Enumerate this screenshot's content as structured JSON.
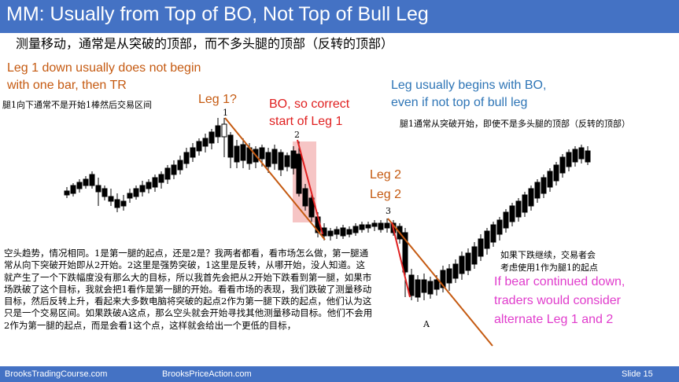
{
  "header": {
    "title": "MM: Usually from Top of BO, Not Top of Bull Leg",
    "subtitle": "测量移动，通常是从突破的顶部，而不多头腿的顶部（反转的顶部）"
  },
  "annotations": {
    "leg1_down_line1": "Leg 1 down usually does not begin",
    "leg1_down_line2": "with one bar, then TR",
    "leg1_down_cn": "腿1向下通常不是开始1棒然后交易区间",
    "leg1_q": "Leg 1?",
    "bo_line1": "BO, so correct",
    "bo_line2": "start of Leg 1",
    "leg_begins_line1": "Leg usually begins with BO,",
    "leg_begins_line2": "even if not top of bull leg",
    "leg_begins_cn": "腿1通常从突破开始，即使不是多头腿的顶部（反转的顶部）",
    "leg2_a": "Leg 2",
    "leg2_b": "Leg 2",
    "label_1": "1",
    "label_2": "2",
    "label_3": "3",
    "label_a": "A",
    "continue_cn_line1": "如果下跌继续，交易者会",
    "continue_cn_line2": "考虑使用1作为腿1的起点",
    "bear_line1": "If bear continued down,",
    "bear_line2": "traders would consider",
    "bear_line3": "alternate Leg 1 and 2",
    "body_cn": "空头趋势，情况相同。1是第一腿的起点，还是2是？我两者都看，看市场怎么做，第一腿通常从向下突破开始即从2开始。2这里是强势突破，1这里是反转，从哪开始，没人知道。这就产生了一个下跌幅度没有那么大的目标，所以我首先会把从2开始下跌看到第一腿，如果市场跌破了这个目标，我就会把1看作是第一腿的开始。看看市场的表现，我们跌破了测量移动目标，然后反转上升，看起来大多数电脑将突破的起点2作为第一腿下跌的起点，他们认为这只是一个交易区间。如果跌破A这点，那么空头就会开始寻找其他测量移动目标。他们不会用2作为第一腿的起点，而是会看1这个点，这样就会给出一个更低的目标，"
  },
  "footer": {
    "left": "BrooksTradingCourse.com",
    "center": "BrooksPriceAction.com",
    "slide": "Slide  15"
  },
  "colors": {
    "title_bar": "#4472c4",
    "orange": "#c55a11",
    "red": "#e02020",
    "blue": "#2e75b6",
    "magenta": "#e03ccc",
    "bo_highlight": "#f4b6b6"
  }
}
